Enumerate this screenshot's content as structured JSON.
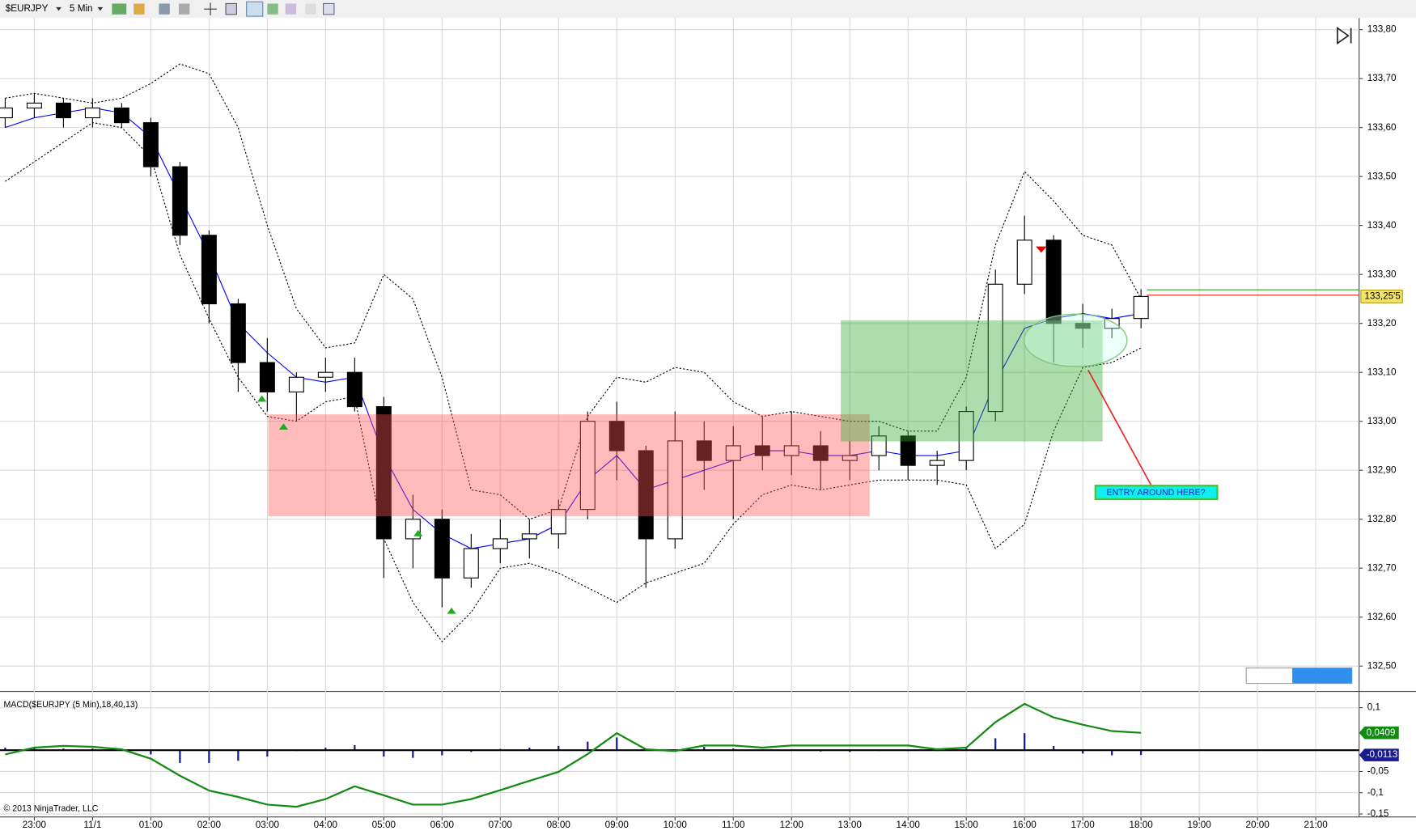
{
  "chart_data": [
    {
      "type": "candlestick",
      "symbol": "$EURJPY",
      "interval": "5 Min",
      "categories": [
        null,
        "23:00",
        null,
        "11/1",
        null,
        "01:00",
        null,
        "02:00",
        null,
        "03:00",
        null,
        "04:00",
        null,
        "05:00",
        null,
        "06:00",
        null,
        "07:00",
        null,
        "08:00",
        null,
        "09:00",
        null,
        "10:00",
        null,
        "11:00",
        null,
        "12:00",
        null,
        "13:00",
        null,
        "14:00",
        null,
        "15:00",
        null,
        "16:00",
        null,
        "17:00",
        null,
        "18:00",
        null,
        "19:00",
        null,
        "20:00",
        null,
        "21:00",
        null
      ],
      "open": [
        133.62,
        133.64,
        133.65,
        133.62,
        133.64,
        133.61,
        133.52,
        133.38,
        133.24,
        133.12,
        133.06,
        133.09,
        133.1,
        133.03,
        132.76,
        132.8,
        132.68,
        132.74,
        132.76,
        132.77,
        132.82,
        133.0,
        132.94,
        132.76,
        132.96,
        132.92,
        132.95,
        132.93,
        132.95,
        132.92,
        132.93,
        132.97,
        132.91,
        132.92,
        133.02,
        133.28,
        133.37,
        133.2,
        133.19,
        133.21,
        null,
        null,
        null,
        null,
        null,
        null,
        null
      ],
      "high": [
        133.66,
        133.67,
        133.66,
        133.66,
        133.65,
        133.62,
        133.53,
        133.39,
        133.25,
        133.17,
        133.1,
        133.13,
        133.13,
        133.05,
        132.85,
        132.82,
        132.77,
        132.8,
        132.8,
        132.84,
        133.02,
        133.04,
        132.95,
        133.02,
        133.0,
        132.99,
        133.01,
        133.02,
        132.98,
        132.96,
        132.99,
        132.98,
        132.94,
        133.03,
        133.31,
        133.42,
        133.38,
        133.24,
        133.23,
        133.27,
        null,
        null,
        null,
        null,
        null,
        null,
        null
      ],
      "low": [
        133.6,
        133.62,
        133.6,
        133.6,
        133.6,
        133.5,
        133.36,
        133.2,
        133.06,
        133.02,
        133.0,
        133.06,
        133.02,
        132.68,
        132.7,
        132.62,
        132.66,
        132.71,
        132.72,
        132.74,
        132.8,
        132.88,
        132.66,
        132.74,
        132.86,
        132.8,
        132.9,
        132.89,
        132.86,
        132.88,
        132.9,
        132.88,
        132.87,
        132.9,
        133.0,
        133.26,
        133.12,
        133.15,
        133.17,
        133.19,
        null,
        null,
        null,
        null,
        null,
        null,
        null
      ],
      "close": [
        133.64,
        133.65,
        133.62,
        133.64,
        133.61,
        133.52,
        133.38,
        133.24,
        133.12,
        133.06,
        133.09,
        133.1,
        133.03,
        132.76,
        132.8,
        132.68,
        132.74,
        132.76,
        132.77,
        132.82,
        133.0,
        132.94,
        132.76,
        132.96,
        132.92,
        132.95,
        132.93,
        132.95,
        132.92,
        132.93,
        132.97,
        132.91,
        132.92,
        133.02,
        133.28,
        133.37,
        133.2,
        133.19,
        133.21,
        133.255,
        null,
        null,
        null,
        null,
        null,
        null,
        null
      ],
      "upper": [
        133.66,
        133.67,
        133.66,
        133.65,
        133.66,
        133.69,
        133.73,
        133.71,
        133.6,
        133.4,
        133.23,
        133.15,
        133.16,
        133.3,
        133.25,
        133.09,
        132.86,
        132.85,
        132.8,
        132.82,
        133.01,
        133.09,
        133.08,
        133.11,
        133.1,
        133.04,
        133.01,
        133.02,
        133.01,
        133.0,
        133.0,
        132.98,
        132.98,
        133.09,
        133.36,
        133.51,
        133.45,
        133.38,
        133.36,
        133.25,
        null,
        null,
        null,
        null,
        null,
        null,
        null
      ],
      "lower": [
        133.49,
        133.53,
        133.57,
        133.61,
        133.6,
        133.54,
        133.34,
        133.21,
        133.09,
        133.01,
        133.0,
        133.04,
        133.05,
        132.76,
        132.63,
        132.55,
        132.61,
        132.7,
        132.71,
        132.69,
        132.66,
        132.63,
        132.67,
        132.69,
        132.71,
        132.79,
        132.85,
        132.87,
        132.86,
        132.87,
        132.88,
        132.88,
        132.88,
        132.87,
        132.74,
        132.79,
        132.98,
        133.11,
        133.12,
        133.15,
        null,
        null,
        null,
        null,
        null,
        null,
        null
      ],
      "average": [
        133.6,
        133.62,
        133.63,
        133.64,
        133.63,
        133.58,
        133.46,
        133.34,
        133.2,
        133.14,
        133.09,
        133.08,
        133.09,
        132.93,
        132.82,
        132.77,
        132.74,
        132.75,
        132.76,
        132.79,
        132.88,
        132.93,
        132.86,
        132.88,
        132.9,
        132.92,
        132.94,
        132.94,
        132.93,
        132.93,
        132.94,
        132.93,
        132.93,
        132.94,
        133.08,
        133.19,
        133.21,
        133.22,
        133.21,
        133.22,
        null,
        null,
        null,
        null,
        null,
        null,
        null
      ],
      "band_color": "#000000",
      "average_color": "#0000ff",
      "last_price_label": "133,25'5",
      "ylim": [
        132.45,
        133.82
      ],
      "yticks": [
        {
          "value": 132.5,
          "label": "132,50"
        },
        {
          "value": 132.6,
          "label": "132,60"
        },
        {
          "value": 132.7,
          "label": "132,70"
        },
        {
          "value": 132.8,
          "label": "132,80"
        },
        {
          "value": 132.9,
          "label": "132,90"
        },
        {
          "value": 133.0,
          "label": "133,00"
        },
        {
          "value": 133.1,
          "label": "133,10"
        },
        {
          "value": 133.2,
          "label": "133,20"
        },
        {
          "value": 133.3,
          "label": "133,30"
        },
        {
          "value": 133.4,
          "label": "133,40"
        },
        {
          "value": 133.5,
          "label": "133,50"
        },
        {
          "value": 133.6,
          "label": "133,60"
        },
        {
          "value": 133.7,
          "label": "133,70"
        },
        {
          "value": 133.8,
          "label": "133,80"
        }
      ],
      "grid": true,
      "annotation": "ENTRY AROUND HERE?",
      "copyright": "© 2013 NinjaTrader, LLC"
    },
    {
      "type": "macd",
      "title": "MACD($EURJPY (5 Min),18,40,13)",
      "macd": [
        -0.01,
        0.006,
        0.01,
        0.008,
        0.002,
        -0.02,
        -0.06,
        -0.095,
        -0.11,
        -0.128,
        -0.133,
        -0.115,
        -0.085,
        -0.106,
        -0.128,
        -0.128,
        -0.115,
        -0.094,
        -0.072,
        -0.051,
        -0.009,
        0.04,
        0.002,
        -0.002,
        0.011,
        0.011,
        0.006,
        0.011,
        0.011,
        0.011,
        0.011,
        0.011,
        0.002,
        0.006,
        0.066,
        0.109,
        0.077,
        0.06,
        0.045,
        0.0409,
        null,
        null,
        null,
        null,
        null,
        null,
        null
      ],
      "histogram": [
        0.006,
        0.008,
        0.004,
        0.004,
        0.0,
        -0.01,
        -0.03,
        -0.03,
        -0.025,
        -0.015,
        -0.002,
        0.006,
        0.012,
        -0.015,
        -0.018,
        -0.012,
        -0.004,
        0.003,
        0.006,
        0.01,
        0.02,
        0.03,
        0.004,
        -0.002,
        0.008,
        0.004,
        0.002,
        0.0,
        -0.003,
        -0.004,
        -0.002,
        -0.002,
        -0.002,
        0.004,
        0.028,
        0.04,
        0.01,
        -0.008,
        -0.012,
        -0.0113,
        null,
        null,
        null,
        null,
        null,
        null,
        null
      ],
      "macd_color": "#138a13",
      "histogram_color": "#1a1a8c",
      "macd_label": "0,0409",
      "histogram_label": "-0,0113",
      "ylim": [
        -0.157,
        0.136
      ],
      "yticks": [
        {
          "value": 0.1,
          "label": "0,1"
        },
        {
          "value": -0.05,
          "label": "-0,05"
        },
        {
          "value": -0.1,
          "label": "-0,1"
        },
        {
          "value": -0.15,
          "label": "-0,15"
        }
      ]
    }
  ]
}
